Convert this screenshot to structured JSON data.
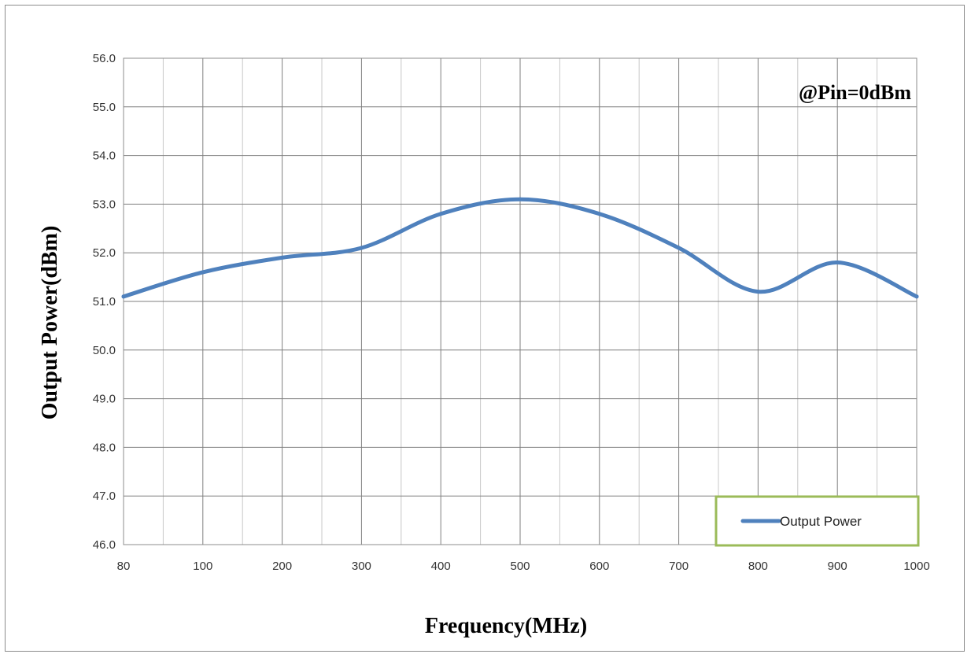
{
  "chart_data": {
    "type": "line",
    "annotation": "@Pin=0dBm",
    "xlabel": "Frequency(MHz)",
    "ylabel": "Output Power(dBm)",
    "x_ticks": [
      "80",
      "100",
      "200",
      "300",
      "400",
      "500",
      "600",
      "700",
      "800",
      "900",
      "1000"
    ],
    "y_ticks": [
      "46.0",
      "47.0",
      "48.0",
      "49.0",
      "50.0",
      "51.0",
      "52.0",
      "53.0",
      "54.0",
      "55.0",
      "56.0"
    ],
    "ylim": [
      46,
      56
    ],
    "grid": true,
    "legend_position": "bottom-right",
    "series": [
      {
        "name": "Output Power",
        "color": "#4f81bd",
        "x": [
          "80",
          "100",
          "200",
          "300",
          "400",
          "500",
          "600",
          "700",
          "800",
          "900",
          "1000"
        ],
        "values": [
          51.1,
          51.6,
          51.9,
          52.1,
          52.8,
          53.1,
          52.8,
          52.1,
          51.2,
          51.8,
          51.1
        ]
      }
    ],
    "legend_border_color": "#9bbb59",
    "grid_color": "#7f7f7f"
  }
}
